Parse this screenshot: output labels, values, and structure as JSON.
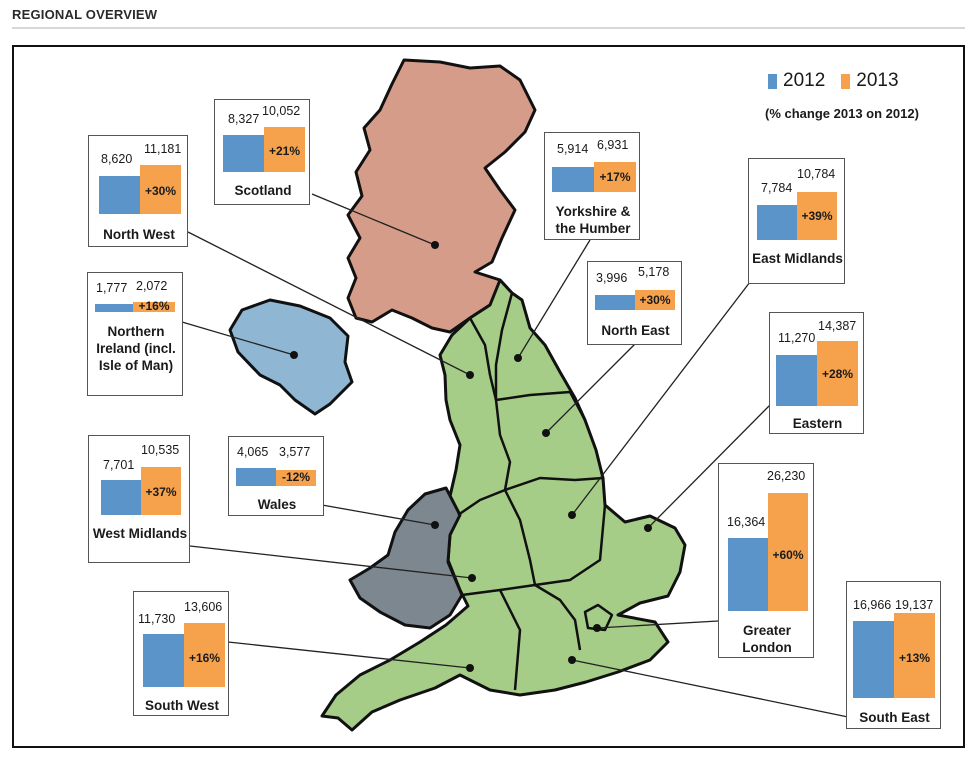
{
  "header": {
    "title": "REGIONAL OVERVIEW"
  },
  "legend": {
    "label_2012": "2012",
    "label_2013": "2013",
    "note": "(% change 2013 on 2012)",
    "color_2012": "#5b94c9",
    "color_2013": "#f6a24d"
  },
  "map_colors": {
    "scotland": "#d69c8a",
    "northern_ireland": "#8fb6d3",
    "wales": "#7d8790",
    "england": "#a6cd88"
  },
  "regions": {
    "scotland": {
      "name": "Scotland",
      "v2012": "8,327",
      "v2013": "10,052",
      "pct": "+21%"
    },
    "north_west": {
      "name": "North West",
      "v2012": "8,620",
      "v2013": "11,181",
      "pct": "+30%"
    },
    "yorkshire": {
      "name": "Yorkshire & the Humber",
      "v2012": "5,914",
      "v2013": "6,931",
      "pct": "+17%"
    },
    "east_midlands": {
      "name": "East Midlands",
      "v2012": "7,784",
      "v2013": "10,784",
      "pct": "+39%"
    },
    "northern_ireland": {
      "name": "Northern Ireland (incl. Isle of Man)",
      "v2012": "1,777",
      "v2013": "2,072",
      "pct": "+16%"
    },
    "north_east": {
      "name": "North East",
      "v2012": "3,996",
      "v2013": "5,178",
      "pct": "+30%"
    },
    "eastern": {
      "name": "Eastern",
      "v2012": "11,270",
      "v2013": "14,387",
      "pct": "+28%"
    },
    "west_midlands": {
      "name": "West Midlands",
      "v2012": "7,701",
      "v2013": "10,535",
      "pct": "+37%"
    },
    "wales": {
      "name": "Wales",
      "v2012": "4,065",
      "v2013": "3,577",
      "pct": "-12%"
    },
    "greater_london": {
      "name": "Greater London",
      "v2012": "16,364",
      "v2013": "26,230",
      "pct": "+60%"
    },
    "south_west": {
      "name": "South West",
      "v2012": "11,730",
      "v2013": "13,606",
      "pct": "+16%"
    },
    "south_east": {
      "name": "South East",
      "v2012": "16,966",
      "v2013": "19,137",
      "pct": "+13%"
    }
  }
}
